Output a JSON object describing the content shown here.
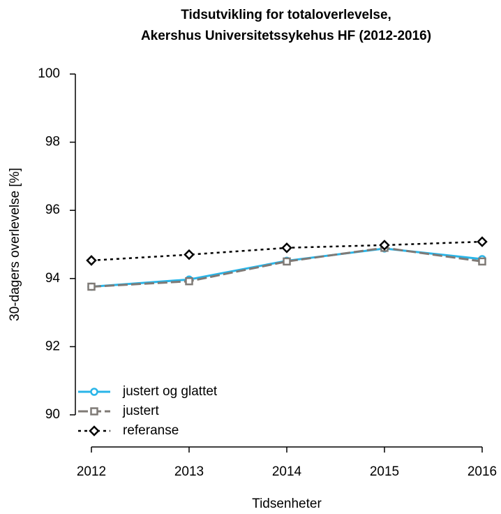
{
  "chart_data": {
    "type": "line",
    "title": [
      "Tidsutvikling for totaloverlevelse,",
      "Akershus Universitetssykehus HF (2012-2016)"
    ],
    "x_label": "Tidsenheter",
    "y_label": "30-dagers overlevelse [%]",
    "x": [
      2012,
      2013,
      2014,
      2015,
      2016
    ],
    "xlim": [
      2012,
      2016
    ],
    "xticks": [
      2012,
      2013,
      2014,
      2015,
      2016
    ],
    "ylim": [
      90,
      100
    ],
    "yticks": [
      90,
      92,
      94,
      96,
      98,
      100
    ],
    "legend": "bottomleft",
    "series": [
      {
        "name": "justert og glattet",
        "color": "#29b5e8",
        "marker": "circle",
        "dash": "solid",
        "values": [
          93.76,
          93.97,
          94.52,
          94.88,
          94.57
        ]
      },
      {
        "name": "justert",
        "color": "#7f7a76",
        "marker": "square",
        "dash": "dashed",
        "values": [
          93.76,
          93.92,
          94.5,
          94.9,
          94.5
        ]
      },
      {
        "name": "referanse",
        "color": "#000000",
        "marker": "diamond",
        "dash": "dotted",
        "values": [
          94.53,
          94.7,
          94.9,
          94.98,
          95.08
        ]
      }
    ]
  }
}
